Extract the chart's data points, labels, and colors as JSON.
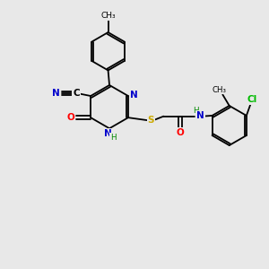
{
  "background_color": "#e8e8e8",
  "bond_color": "#000000",
  "atom_colors": {
    "N": "#0000cc",
    "O": "#ff0000",
    "S": "#ccaa00",
    "Cl": "#00bb00",
    "C": "#000000",
    "H": "#008800"
  },
  "figsize": [
    3.0,
    3.0
  ],
  "dpi": 100
}
